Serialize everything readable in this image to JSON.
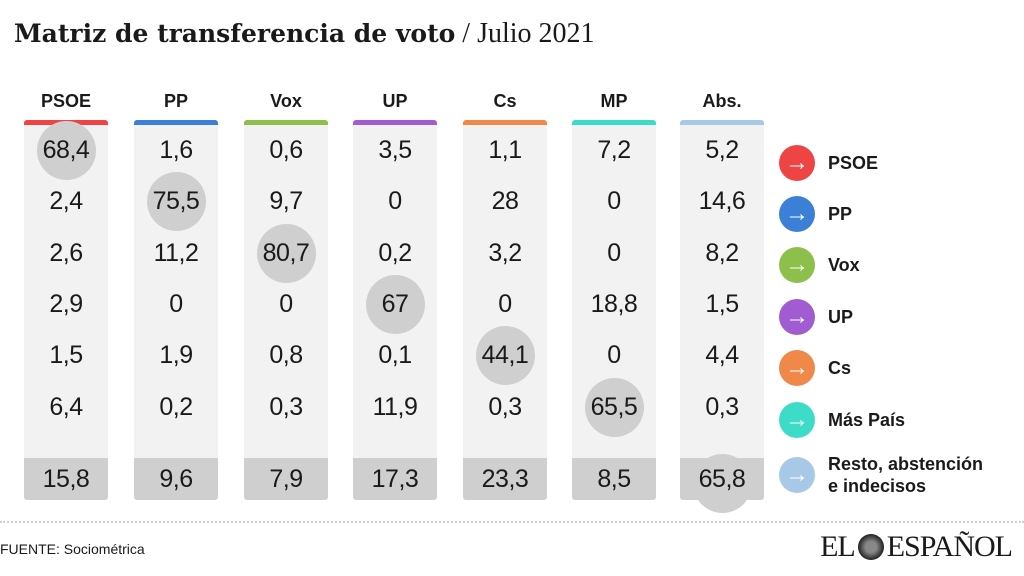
{
  "title": {
    "main": "Matriz de transferencia de voto",
    "sub": " / Julio 2021"
  },
  "chart_data": {
    "type": "table",
    "columns": [
      {
        "label": "PSOE",
        "color": "#ef4444"
      },
      {
        "label": "PP",
        "color": "#3b7fd6"
      },
      {
        "label": "Vox",
        "color": "#8cc04a"
      },
      {
        "label": "UP",
        "color": "#a05cd0"
      },
      {
        "label": "Cs",
        "color": "#f0884a"
      },
      {
        "label": "MP",
        "color": "#3ddcc8"
      },
      {
        "label": "Abs.",
        "color": "#a8c8e8"
      }
    ],
    "rows": [
      {
        "label": "PSOE",
        "color": "#ef4444",
        "values": [
          "68,4",
          "1,6",
          "0,6",
          "3,5",
          "1,1",
          "7,2",
          "5,2"
        ]
      },
      {
        "label": "PP",
        "color": "#3b7fd6",
        "values": [
          "2,4",
          "75,5",
          "9,7",
          "0",
          "28",
          "0",
          "14,6"
        ]
      },
      {
        "label": "Vox",
        "color": "#8cc04a",
        "values": [
          "2,6",
          "11,2",
          "80,7",
          "0,2",
          "3,2",
          "0",
          "8,2"
        ]
      },
      {
        "label": "UP",
        "color": "#a05cd0",
        "values": [
          "2,9",
          "0",
          "0",
          "67",
          "0",
          "18,8",
          "1,5"
        ]
      },
      {
        "label": "Cs",
        "color": "#f0884a",
        "values": [
          "1,5",
          "1,9",
          "0,8",
          "0,1",
          "44,1",
          "0",
          "4,4"
        ]
      },
      {
        "label": "Más País",
        "color": "#3ddcc8",
        "values": [
          "6,4",
          "0,2",
          "0,3",
          "11,9",
          "0,3",
          "65,5",
          "0,3"
        ]
      },
      {
        "label": "Resto, abstención e indecisos",
        "color": "#a8c8e8",
        "values": [
          "15,8",
          "9,6",
          "7,9",
          "17,3",
          "23,3",
          "8,5",
          "65,8"
        ]
      }
    ],
    "highlight": "diagonal"
  },
  "legend_icon": "arrow-right-icon",
  "footer": {
    "source": "FUENTE: Sociométrica",
    "logo": "EL ESPAÑOL"
  }
}
